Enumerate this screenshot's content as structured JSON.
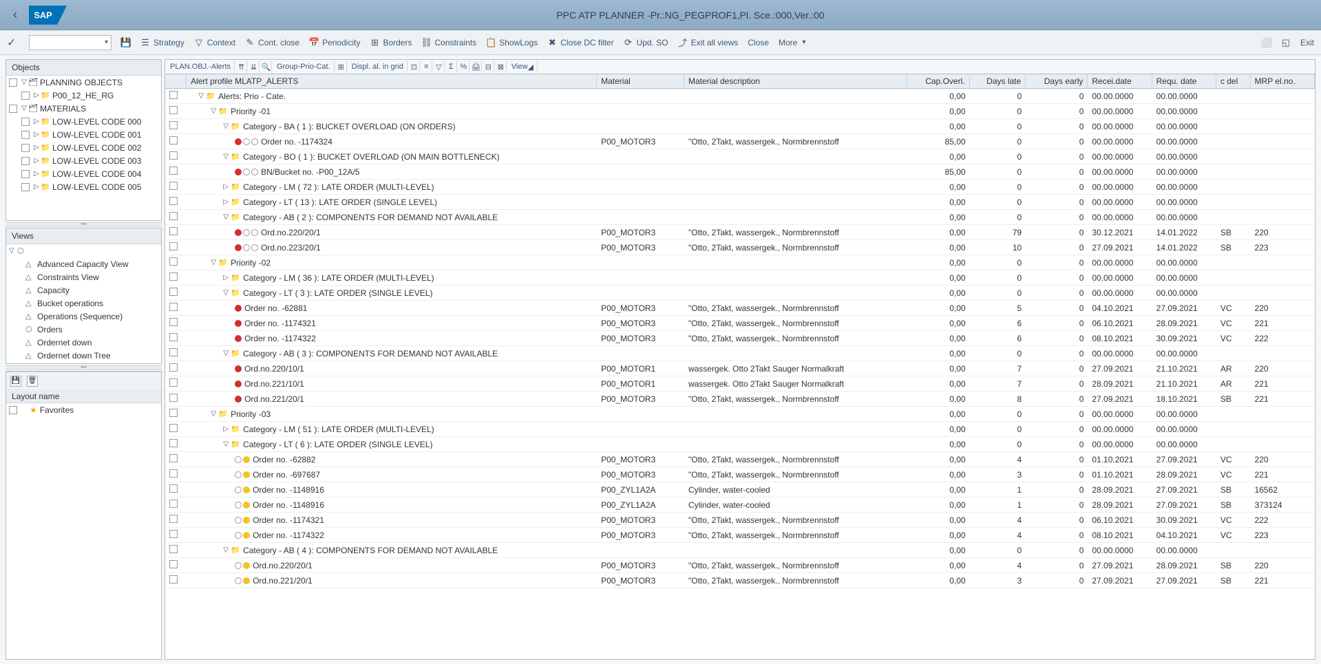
{
  "title": "PPC ATP PLANNER -Pr.:NG_PEGPROF1,Pl. Sce.:000,Ver.:00",
  "toolbar": {
    "strategy": "Strategy",
    "context": "Context",
    "cont_close": "Cont. close",
    "periodicity": "Periodicity",
    "borders": "Borders",
    "constraints": "Constraints",
    "showlogs": "ShowLogs",
    "close_dc": "Close DC filter",
    "upd_so": "Upd. SO",
    "exit_all": "Exit all views",
    "close": "Close",
    "more": "More",
    "exit": "Exit"
  },
  "objects": {
    "title": "Objects",
    "root": "PLANNING OBJECTS",
    "items": [
      "P00_12_HE_RG"
    ],
    "materials": "MATERIALS",
    "codes": [
      "LOW-LEVEL CODE 000",
      "LOW-LEVEL CODE 001",
      "LOW-LEVEL CODE 002",
      "LOW-LEVEL CODE 003",
      "LOW-LEVEL CODE 004",
      "LOW-LEVEL CODE 005"
    ]
  },
  "views": {
    "title": "Views",
    "items": [
      "Advanced Capacity View",
      "Constraints View",
      "Capacity",
      "Bucket operations",
      "Operations (Sequence)",
      "Orders",
      "Ordernet down",
      "Ordernet down Tree"
    ]
  },
  "layouts": {
    "header": "Layout name",
    "fav": "Favorites"
  },
  "grid_toolbar": {
    "plan": "PLAN.OBJ.-Alerts",
    "group": "Group-Prio-Cat.",
    "displ": "Displ. al. in grid",
    "view": "View"
  },
  "grid": {
    "columns": {
      "alert_profile": "Alert profile MLATP_ALERTS",
      "material": "Material",
      "mat_desc": "Material description",
      "cap_overl": "Cap.Overl.",
      "days_late": "Days late",
      "days_early": "Days early",
      "recei_date": "Recei.date",
      "requ_date": "Requ. date",
      "c_del": "c del",
      "mrp": "MRP el.no."
    },
    "rows": [
      {
        "lvl": 0,
        "exp": "▽",
        "ic": "📁",
        "label": "Alerts: Prio - Cate.",
        "cap": "0,00",
        "late": "0",
        "early": "0",
        "rdate": "00.00.0000",
        "qdate": "00.00.0000"
      },
      {
        "lvl": 1,
        "exp": "▽",
        "ic": "📁",
        "label": "Priority -01",
        "cap": "0,00",
        "late": "0",
        "early": "0",
        "rdate": "00.00.0000",
        "qdate": "00.00.0000"
      },
      {
        "lvl": 2,
        "exp": "▽",
        "ic": "📁",
        "label": "Category  - BA ( 1 ): BUCKET OVERLOAD (ON ORDERS)",
        "cap": "0,00",
        "late": "0",
        "early": "0",
        "rdate": "00.00.0000",
        "qdate": "00.00.0000"
      },
      {
        "lvl": 3,
        "dots": [
          "r",
          "o",
          "o"
        ],
        "label": "Order no. -1174324",
        "mat": "P00_MOTOR3",
        "desc": "\"Otto, 2Takt, wassergek., Normbrennstoff",
        "cap": "85,00",
        "late": "0",
        "early": "0",
        "rdate": "00.00.0000",
        "qdate": "00.00.0000"
      },
      {
        "lvl": 2,
        "exp": "▽",
        "ic": "📁",
        "label": "Category  - BO ( 1 ): BUCKET OVERLOAD (ON MAIN BOTTLENECK)",
        "cap": "0,00",
        "late": "0",
        "early": "0",
        "rdate": "00.00.0000",
        "qdate": "00.00.0000"
      },
      {
        "lvl": 3,
        "dots": [
          "r",
          "o",
          "o"
        ],
        "label": "BN/Bucket no. -P00_12A/5",
        "cap": "85,00",
        "late": "0",
        "early": "0",
        "rdate": "00.00.0000",
        "qdate": "00.00.0000"
      },
      {
        "lvl": 2,
        "exp": "▷",
        "ic": "📁",
        "label": "Category  - LM ( 72 ): LATE ORDER (MULTI-LEVEL)",
        "cap": "0,00",
        "late": "0",
        "early": "0",
        "rdate": "00.00.0000",
        "qdate": "00.00.0000"
      },
      {
        "lvl": 2,
        "exp": "▷",
        "ic": "📁",
        "label": "Category  - LT ( 13 ): LATE ORDER (SINGLE LEVEL)",
        "cap": "0,00",
        "late": "0",
        "early": "0",
        "rdate": "00.00.0000",
        "qdate": "00.00.0000"
      },
      {
        "lvl": 2,
        "exp": "▽",
        "ic": "📁",
        "label": "Category  - AB ( 2 ): COMPONENTS FOR DEMAND NOT AVAILABLE",
        "cap": "0,00",
        "late": "0",
        "early": "0",
        "rdate": "00.00.0000",
        "qdate": "00.00.0000"
      },
      {
        "lvl": 3,
        "dots": [
          "r",
          "o",
          "o"
        ],
        "label": "Ord.no.220/20/1",
        "mat": "P00_MOTOR3",
        "desc": "\"Otto, 2Takt, wassergek., Normbrennstoff",
        "cap": "0,00",
        "late": "79",
        "early": "0",
        "rdate": "30.12.2021",
        "qdate": "14.01.2022",
        "cdel": "SB",
        "mrp": "220"
      },
      {
        "lvl": 3,
        "dots": [
          "r",
          "o",
          "o"
        ],
        "label": "Ord.no.223/20/1",
        "mat": "P00_MOTOR3",
        "desc": "\"Otto, 2Takt, wassergek., Normbrennstoff",
        "cap": "0,00",
        "late": "10",
        "early": "0",
        "rdate": "27.09.2021",
        "qdate": "14.01.2022",
        "cdel": "SB",
        "mrp": "223"
      },
      {
        "lvl": 1,
        "exp": "▽",
        "ic": "📁",
        "label": "Priority -02",
        "cap": "0,00",
        "late": "0",
        "early": "0",
        "rdate": "00.00.0000",
        "qdate": "00.00.0000"
      },
      {
        "lvl": 2,
        "exp": "▷",
        "ic": "📁",
        "label": "Category  - LM ( 36 ): LATE ORDER (MULTI-LEVEL)",
        "cap": "0,00",
        "late": "0",
        "early": "0",
        "rdate": "00.00.0000",
        "qdate": "00.00.0000"
      },
      {
        "lvl": 2,
        "exp": "▽",
        "ic": "📁",
        "label": "Category  - LT ( 3 ): LATE ORDER (SINGLE LEVEL)",
        "cap": "0,00",
        "late": "0",
        "early": "0",
        "rdate": "00.00.0000",
        "qdate": "00.00.0000"
      },
      {
        "lvl": 3,
        "dots": [
          "r"
        ],
        "label": "Order no. -62881",
        "mat": "P00_MOTOR3",
        "desc": "\"Otto, 2Takt, wassergek., Normbrennstoff",
        "cap": "0,00",
        "late": "5",
        "early": "0",
        "rdate": "04.10.2021",
        "qdate": "27.09.2021",
        "cdel": "VC",
        "mrp": "220"
      },
      {
        "lvl": 3,
        "dots": [
          "r"
        ],
        "label": "Order no. -1174321",
        "mat": "P00_MOTOR3",
        "desc": "\"Otto, 2Takt, wassergek., Normbrennstoff",
        "cap": "0,00",
        "late": "6",
        "early": "0",
        "rdate": "06.10.2021",
        "qdate": "28.09.2021",
        "cdel": "VC",
        "mrp": "221"
      },
      {
        "lvl": 3,
        "dots": [
          "r"
        ],
        "label": "Order no. -1174322",
        "mat": "P00_MOTOR3",
        "desc": "\"Otto, 2Takt, wassergek., Normbrennstoff",
        "cap": "0,00",
        "late": "6",
        "early": "0",
        "rdate": "08.10.2021",
        "qdate": "30.09.2021",
        "cdel": "VC",
        "mrp": "222"
      },
      {
        "lvl": 2,
        "exp": "▽",
        "ic": "📁",
        "label": "Category  - AB ( 3 ): COMPONENTS FOR DEMAND NOT AVAILABLE",
        "cap": "0,00",
        "late": "0",
        "early": "0",
        "rdate": "00.00.0000",
        "qdate": "00.00.0000"
      },
      {
        "lvl": 3,
        "dots": [
          "r"
        ],
        "label": "Ord.no.220/10/1",
        "mat": "P00_MOTOR1",
        "desc": "wassergek. Otto 2Takt Sauger Normalkraft",
        "cap": "0,00",
        "late": "7",
        "early": "0",
        "rdate": "27.09.2021",
        "qdate": "21.10.2021",
        "cdel": "AR",
        "mrp": "220"
      },
      {
        "lvl": 3,
        "dots": [
          "r"
        ],
        "label": "Ord.no.221/10/1",
        "mat": "P00_MOTOR1",
        "desc": "wassergek. Otto 2Takt Sauger Normalkraft",
        "cap": "0,00",
        "late": "7",
        "early": "0",
        "rdate": "28.09.2021",
        "qdate": "21.10.2021",
        "cdel": "AR",
        "mrp": "221"
      },
      {
        "lvl": 3,
        "dots": [
          "r"
        ],
        "label": "Ord.no.221/20/1",
        "mat": "P00_MOTOR3",
        "desc": "\"Otto, 2Takt, wassergek., Normbrennstoff",
        "cap": "0,00",
        "late": "8",
        "early": "0",
        "rdate": "27.09.2021",
        "qdate": "18.10.2021",
        "cdel": "SB",
        "mrp": "221"
      },
      {
        "lvl": 1,
        "exp": "▽",
        "ic": "📁",
        "label": "Priority -03",
        "cap": "0,00",
        "late": "0",
        "early": "0",
        "rdate": "00.00.0000",
        "qdate": "00.00.0000"
      },
      {
        "lvl": 2,
        "exp": "▷",
        "ic": "📁",
        "label": "Category  - LM ( 51 ): LATE ORDER (MULTI-LEVEL)",
        "cap": "0,00",
        "late": "0",
        "early": "0",
        "rdate": "00.00.0000",
        "qdate": "00.00.0000"
      },
      {
        "lvl": 2,
        "exp": "▽",
        "ic": "📁",
        "label": "Category  - LT ( 6 ): LATE ORDER (SINGLE LEVEL)",
        "cap": "0,00",
        "late": "0",
        "early": "0",
        "rdate": "00.00.0000",
        "qdate": "00.00.0000"
      },
      {
        "lvl": 3,
        "dots": [
          "o",
          "y"
        ],
        "label": "Order no. -62882",
        "mat": "P00_MOTOR3",
        "desc": "\"Otto, 2Takt, wassergek., Normbrennstoff",
        "cap": "0,00",
        "late": "4",
        "early": "0",
        "rdate": "01.10.2021",
        "qdate": "27.09.2021",
        "cdel": "VC",
        "mrp": "220"
      },
      {
        "lvl": 3,
        "dots": [
          "o",
          "y"
        ],
        "label": "Order no. -697687",
        "mat": "P00_MOTOR3",
        "desc": "\"Otto, 2Takt, wassergek., Normbrennstoff",
        "cap": "0,00",
        "late": "3",
        "early": "0",
        "rdate": "01.10.2021",
        "qdate": "28.09.2021",
        "cdel": "VC",
        "mrp": "221"
      },
      {
        "lvl": 3,
        "dots": [
          "o",
          "y"
        ],
        "label": "Order no. -1148916",
        "mat": "P00_ZYL1A2A",
        "desc": "Cylinder, water-cooled",
        "cap": "0,00",
        "late": "1",
        "early": "0",
        "rdate": "28.09.2021",
        "qdate": "27.09.2021",
        "cdel": "SB",
        "mrp": "16562"
      },
      {
        "lvl": 3,
        "dots": [
          "o",
          "y"
        ],
        "label": "Order no. -1148916",
        "mat": "P00_ZYL1A2A",
        "desc": "Cylinder, water-cooled",
        "cap": "0,00",
        "late": "1",
        "early": "0",
        "rdate": "28.09.2021",
        "qdate": "27.09.2021",
        "cdel": "SB",
        "mrp": "373124"
      },
      {
        "lvl": 3,
        "dots": [
          "o",
          "y"
        ],
        "label": "Order no. -1174321",
        "mat": "P00_MOTOR3",
        "desc": "\"Otto, 2Takt, wassergek., Normbrennstoff",
        "cap": "0,00",
        "late": "4",
        "early": "0",
        "rdate": "06.10.2021",
        "qdate": "30.09.2021",
        "cdel": "VC",
        "mrp": "222"
      },
      {
        "lvl": 3,
        "dots": [
          "o",
          "y"
        ],
        "label": "Order no. -1174322",
        "mat": "P00_MOTOR3",
        "desc": "\"Otto, 2Takt, wassergek., Normbrennstoff",
        "cap": "0,00",
        "late": "4",
        "early": "0",
        "rdate": "08.10.2021",
        "qdate": "04.10.2021",
        "cdel": "VC",
        "mrp": "223"
      },
      {
        "lvl": 2,
        "exp": "▽",
        "ic": "📁",
        "label": "Category  - AB ( 4 ): COMPONENTS FOR DEMAND NOT AVAILABLE",
        "cap": "0,00",
        "late": "0",
        "early": "0",
        "rdate": "00.00.0000",
        "qdate": "00.00.0000"
      },
      {
        "lvl": 3,
        "dots": [
          "o",
          "y"
        ],
        "label": "Ord.no.220/20/1",
        "mat": "P00_MOTOR3",
        "desc": "\"Otto, 2Takt, wassergek., Normbrennstoff",
        "cap": "0,00",
        "late": "4",
        "early": "0",
        "rdate": "27.09.2021",
        "qdate": "28.09.2021",
        "cdel": "SB",
        "mrp": "220"
      },
      {
        "lvl": 3,
        "dots": [
          "o",
          "y"
        ],
        "label": "Ord.no.221/20/1",
        "mat": "P00_MOTOR3",
        "desc": "\"Otto, 2Takt, wassergek., Normbrennstoff",
        "cap": "0,00",
        "late": "3",
        "early": "0",
        "rdate": "27.09.2021",
        "qdate": "27.09.2021",
        "cdel": "SB",
        "mrp": "221"
      }
    ]
  }
}
